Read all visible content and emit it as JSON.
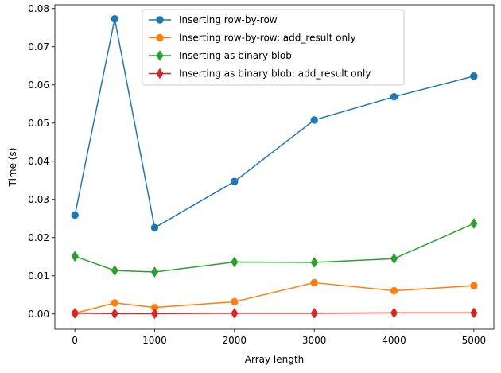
{
  "chart_data": {
    "type": "line",
    "title": "",
    "xlabel": "Array length",
    "ylabel": "Time (s)",
    "xlim": [
      -250,
      5250
    ],
    "ylim": [
      -0.004,
      0.081
    ],
    "xticks": [
      0,
      1000,
      2000,
      3000,
      4000,
      5000
    ],
    "yticks": [
      0.0,
      0.01,
      0.02,
      0.03,
      0.04,
      0.05,
      0.06,
      0.07,
      0.08
    ],
    "xtick_labels": [
      "0",
      "1000",
      "2000",
      "3000",
      "4000",
      "5000"
    ],
    "ytick_labels": [
      "0.00",
      "0.01",
      "0.02",
      "0.03",
      "0.04",
      "0.05",
      "0.06",
      "0.07",
      "0.08"
    ],
    "grid": false,
    "legend_position": "top-center",
    "x": [
      1,
      500,
      1000,
      2000,
      3000,
      4000,
      5000
    ],
    "series": [
      {
        "name": "Inserting row-by-row",
        "color": "#1f77b4",
        "marker": "circle",
        "values": [
          0.0259,
          0.0773,
          0.0226,
          0.0347,
          0.0508,
          0.0569,
          0.0623
        ]
      },
      {
        "name": "Inserting row-by-row: add_result only",
        "color": "#ff7f0e",
        "marker": "circle",
        "values": [
          0.0002,
          0.0029,
          0.0017,
          0.0032,
          0.0082,
          0.0061,
          0.0074
        ]
      },
      {
        "name": "Inserting as binary blob",
        "color": "#2ca02c",
        "marker": "diamond",
        "values": [
          0.0151,
          0.0114,
          0.011,
          0.0136,
          0.0135,
          0.0145,
          0.0237
        ]
      },
      {
        "name": "Inserting as binary blob: add_result only",
        "color": "#d62728",
        "marker": "diamond",
        "values": [
          0.0002,
          0.0001,
          0.0001,
          0.0002,
          0.0002,
          0.0003,
          0.0003
        ]
      }
    ]
  }
}
